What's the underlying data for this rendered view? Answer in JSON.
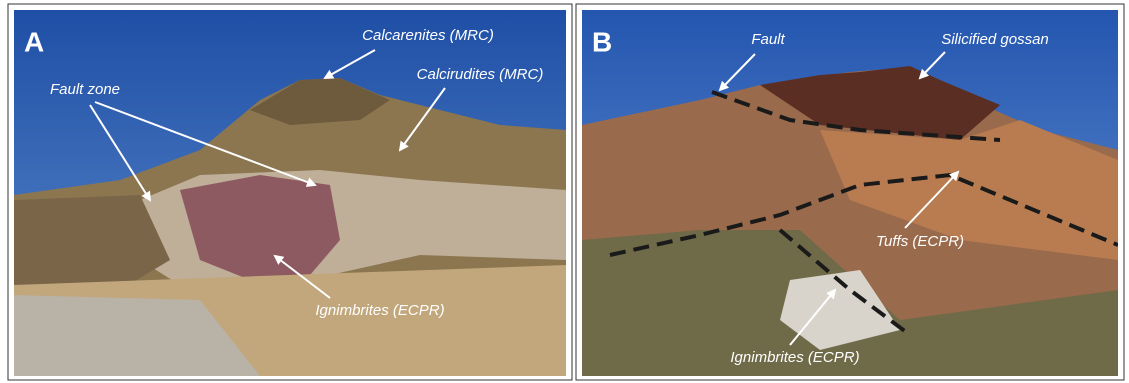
{
  "panels": [
    {
      "letter": "A",
      "labels": [
        "Calcarenites (MRC)",
        "Calcirudites (MRC)",
        "Fault zone",
        "Ignimbrites (ECPR)"
      ]
    },
    {
      "letter": "B",
      "labels": [
        "Fault",
        "Silicified gossan",
        "Tuffs (ECPR)",
        "Ignimbrites (ECPR)"
      ]
    }
  ]
}
